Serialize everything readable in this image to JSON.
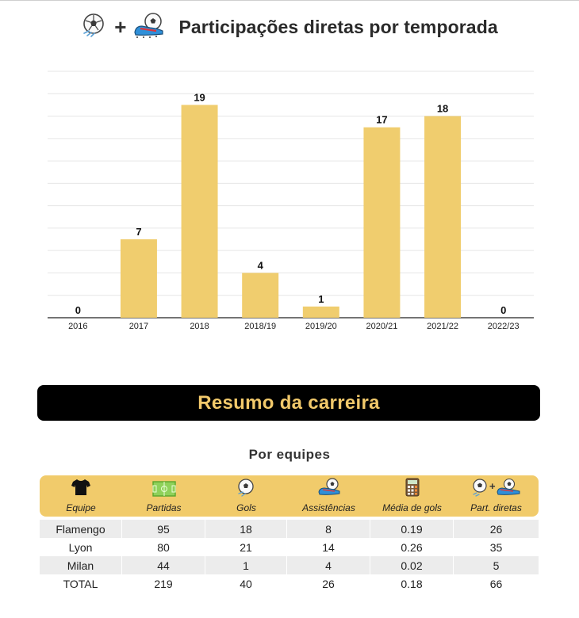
{
  "header": {
    "title": "Participações diretas por temporada",
    "plus": "+"
  },
  "chart_data": {
    "type": "bar",
    "categories": [
      "2016",
      "2017",
      "2018",
      "2018/19",
      "2019/20",
      "2020/21",
      "2021/22",
      "2022/23"
    ],
    "values": [
      0,
      7,
      19,
      4,
      1,
      17,
      18,
      0
    ],
    "title": "Participações diretas por temporada",
    "xlabel": "",
    "ylabel": "",
    "ylim": [
      0,
      22
    ],
    "grid": true,
    "legend": "none",
    "bar_color": "#f0cd6e"
  },
  "banner": {
    "title": "Resumo da carreira"
  },
  "table": {
    "subtitle": "Por equipes",
    "header_color": "#f1cb6b",
    "columns": [
      {
        "label": "Equipe",
        "icon": "shirt-icon"
      },
      {
        "label": "Partidas",
        "icon": "pitch-icon"
      },
      {
        "label": "Gols",
        "icon": "soccer-ball-icon"
      },
      {
        "label": "Assistências",
        "icon": "cleat-icon"
      },
      {
        "label": "Média de gols",
        "icon": "calculator-icon"
      },
      {
        "label": "Part. diretas",
        "icon": "ball-plus-cleat-icon"
      }
    ],
    "rows": [
      [
        "Flamengo",
        "95",
        "18",
        "8",
        "0.19",
        "26"
      ],
      [
        "Lyon",
        "80",
        "21",
        "14",
        "0.26",
        "35"
      ],
      [
        "Milan",
        "44",
        "1",
        "4",
        "0.02",
        "5"
      ],
      [
        "TOTAL",
        "219",
        "40",
        "26",
        "0.18",
        "66"
      ]
    ]
  }
}
